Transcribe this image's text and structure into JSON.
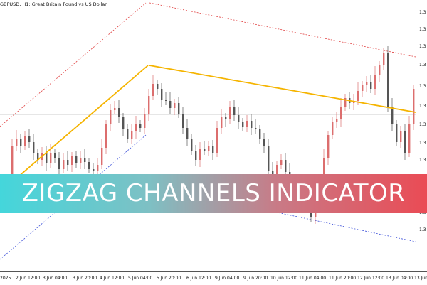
{
  "window": {
    "title": "GBPUSD, H1:  Great Britain Pound vs US Dollar"
  },
  "banner": {
    "text": "ZIGZAG CHANNELS INDICATOR",
    "gradient_colors": [
      "#44d6db",
      "#ea4b55"
    ]
  },
  "price_axis": {
    "labels": [
      "1.3",
      "1.3",
      "1.3",
      "1.3",
      "1.3",
      "1.3",
      "1.3",
      "1.3",
      "1.3",
      "1.3",
      "1.3",
      "1.3",
      "1.3"
    ]
  },
  "time_axis": {
    "labels": [
      "2025",
      "2 Jun 12:00",
      "3 Jun 04:00",
      "3 Jun 20:00",
      "4 Jun 12:00",
      "5 Jun 04:00",
      "5 Jun 20:00",
      "6 Jun 12:00",
      "9 Jun 04:00",
      "9 Jun 20:00",
      "10 Jun 12:00",
      "11 Jun 04:00",
      "11 Jun 20:00",
      "12 Jun 12:00",
      "13 Jun 04:00",
      "13 Jun"
    ]
  },
  "colors": {
    "bull_candle": "#dc6e6e",
    "bear_candle": "#555555",
    "zigzag_line": "#f5b400",
    "channel_upper": "#e04040",
    "channel_lower": "#3a4ed8",
    "background": "#ffffff"
  }
}
